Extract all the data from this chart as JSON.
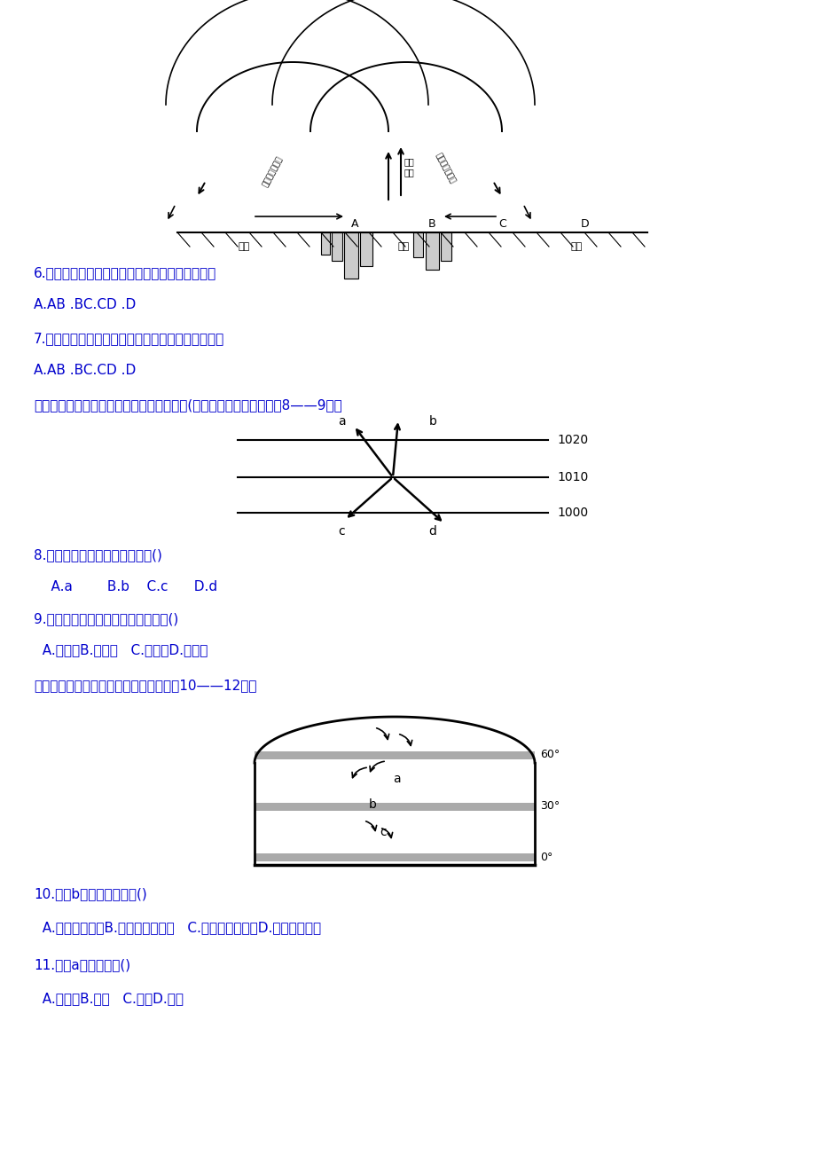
{
  "bg_color": "#ffffff",
  "text_color": "#0000cd",
  "black": "#000000",
  "gray": "#aaaaaa",
  "q6_text": "6.根据热力环流状况，该市的造林重点区宜规划在",
  "q6_ans": "A.AB .BC.CD .D",
  "q7_text": "7.根据热力环流状况，该市的大气污染企业宜规划在",
  "q7_ans": "A.AB .BC.CD .D",
  "q8_intro": "右图为北半球某气压场受力平衡时的风向图(单位：百帕），据图完成8——9题。",
  "q8_text": "8.其中代表水平气压梯度力的是()",
  "q8_ans": "    A.a        B.b    C.c      D.d",
  "q9_text": "9.根据风向可判断该地所在的半球是()",
  "q9_ans": "  A.北半球B.南半球   C.东半球D.西半球",
  "q10_intro": "读北半球气压带、风带分布规律图，完成10——12题。",
  "q10_text": "10.图中b点所在气压带是()",
  "q10_ans": "  A.极地高气压带B.副极地高气压带   C.副热带高气压带D.赤道低气压带",
  "q11_text": "11.图中a风带的性质()",
  "q11_ans": "  A.一热湿B.热干   C.温湿D.冷干"
}
